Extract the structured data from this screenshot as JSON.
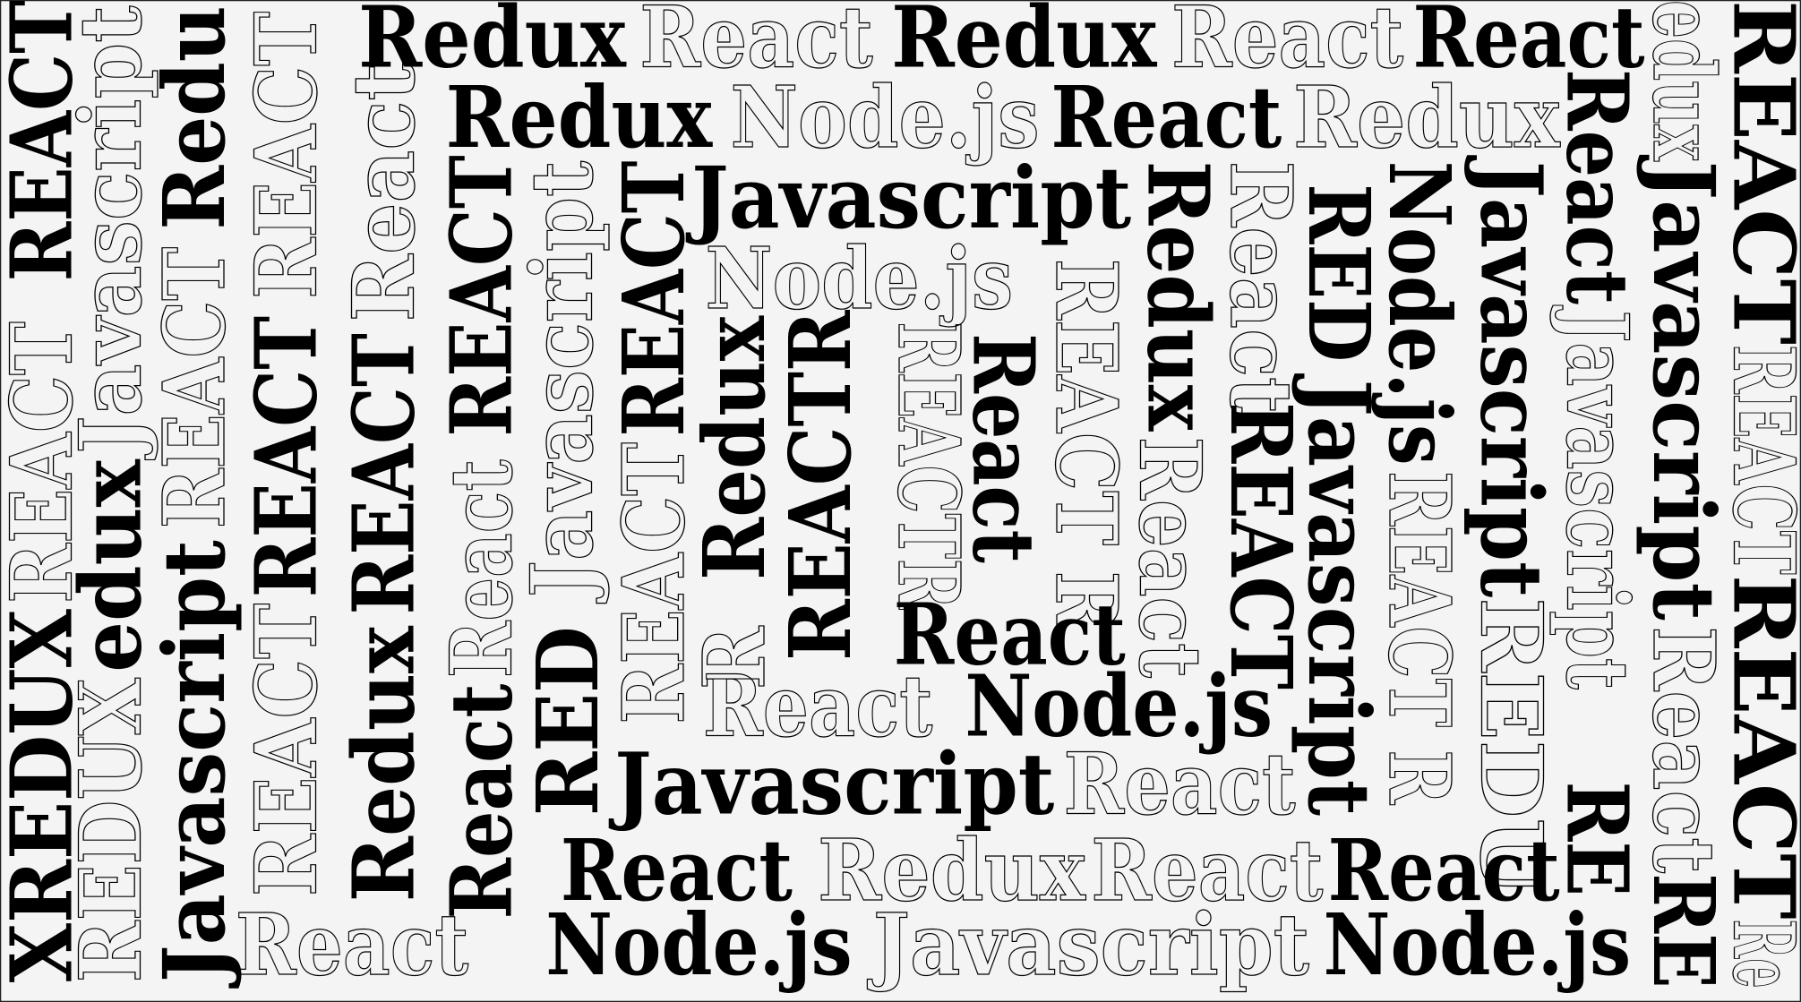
{
  "words": [
    "Redux",
    "React",
    "Redux",
    "React",
    "React",
    "Redux",
    "Node.js",
    "React",
    "Redux",
    "Javascript",
    "Node.js",
    "React",
    "React",
    "Node.js",
    "Javascript",
    "React",
    "React",
    "Redux",
    "React",
    "React",
    "React",
    "Node.js",
    "Javascript",
    "Node.js",
    "XREDUX",
    "REACT",
    "REACT",
    "REDUX",
    "edux",
    "Javascript",
    "Javascript",
    "REACT",
    "Redu",
    "REACT",
    "REACT",
    "REACT",
    "Redux",
    "REACT",
    "React",
    "React",
    "React",
    "REACT",
    "RED",
    "Javascript",
    "REACT",
    "REACT",
    "R",
    "Redux",
    "REACTR",
    "REACTR",
    "React",
    "REACT R",
    "Redux",
    "React",
    "React",
    "REACT",
    "RED",
    "Javascript",
    "Node.js",
    "REACT R",
    "Javascript",
    "REDU",
    "React",
    "Javascript",
    "RE",
    "edux",
    "Javascript",
    "React",
    "RE",
    "REACT",
    "REACT",
    "REACT",
    "Re"
  ]
}
